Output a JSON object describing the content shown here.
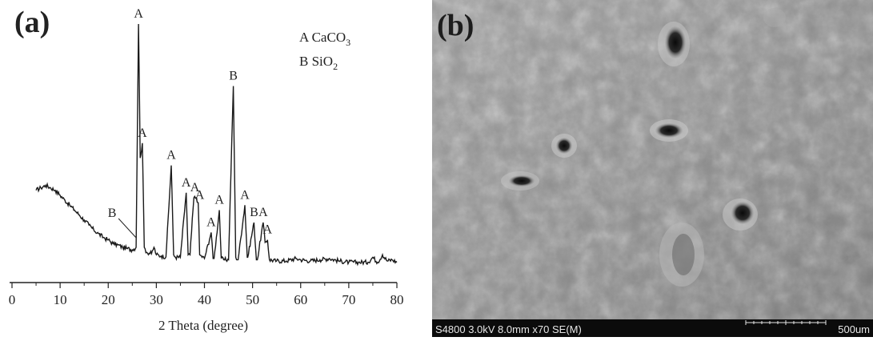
{
  "panel_a": {
    "label": "(a)",
    "legend": [
      {
        "letter": "A",
        "name": "CaCO",
        "sub": "3"
      },
      {
        "letter": "B",
        "name": "SiO",
        "sub": "2"
      }
    ]
  },
  "panel_b": {
    "label": "(b)",
    "info_text": "S4800 3.0kV 8.0mm x70 SE(M)",
    "scale_text": "500um"
  },
  "chart_data": {
    "type": "line",
    "title": "",
    "xlabel": "2 Theta (degree)",
    "ylabel": "",
    "xlim": [
      0,
      80
    ],
    "xticks": [
      0,
      10,
      20,
      30,
      40,
      50,
      60,
      70,
      80
    ],
    "grid": false,
    "series": [
      {
        "points": [
          [
            5,
            0.33
          ],
          [
            6,
            0.34
          ],
          [
            7,
            0.35
          ],
          [
            8,
            0.34
          ],
          [
            9,
            0.33
          ],
          [
            10,
            0.31
          ],
          [
            11,
            0.29
          ],
          [
            12,
            0.27
          ],
          [
            13,
            0.25
          ],
          [
            14,
            0.23
          ],
          [
            15,
            0.21
          ],
          [
            16,
            0.19
          ],
          [
            17,
            0.17
          ],
          [
            18,
            0.155
          ],
          [
            19,
            0.14
          ],
          [
            20,
            0.13
          ],
          [
            21,
            0.115
          ],
          [
            22,
            0.11
          ],
          [
            23,
            0.1
          ],
          [
            24,
            0.095
          ],
          [
            25,
            0.09
          ],
          [
            25.8,
            0.1
          ],
          [
            26.3,
            1.0
          ],
          [
            26.65,
            0.46
          ],
          [
            27.1,
            0.52
          ],
          [
            27.5,
            0.1
          ],
          [
            28,
            0.08
          ],
          [
            29,
            0.075
          ],
          [
            29.5,
            0.1
          ],
          [
            30,
            0.07
          ],
          [
            31,
            0.065
          ],
          [
            32,
            0.062
          ],
          [
            33.1,
            0.43
          ],
          [
            33.6,
            0.07
          ],
          [
            34,
            0.06
          ],
          [
            35,
            0.06
          ],
          [
            36.2,
            0.32
          ],
          [
            36.6,
            0.07
          ],
          [
            37,
            0.07
          ],
          [
            37.8,
            0.3
          ],
          [
            38.3,
            0.3
          ],
          [
            38.7,
            0.28
          ],
          [
            39,
            0.07
          ],
          [
            40,
            0.055
          ],
          [
            41.4,
            0.16
          ],
          [
            41.8,
            0.055
          ],
          [
            42,
            0.055
          ],
          [
            43.1,
            0.25
          ],
          [
            43.5,
            0.055
          ],
          [
            44,
            0.05
          ],
          [
            45,
            0.05
          ],
          [
            46,
            0.75
          ],
          [
            46.5,
            0.06
          ],
          [
            47,
            0.05
          ],
          [
            48.4,
            0.27
          ],
          [
            48.9,
            0.06
          ],
          [
            49,
            0.06
          ],
          [
            50.3,
            0.2
          ],
          [
            50.8,
            0.05
          ],
          [
            51,
            0.05
          ],
          [
            52.2,
            0.2
          ],
          [
            52.6,
            0.12
          ],
          [
            53.1,
            0.13
          ],
          [
            53.5,
            0.05
          ],
          [
            55,
            0.045
          ],
          [
            57,
            0.045
          ],
          [
            59,
            0.055
          ],
          [
            60,
            0.05
          ],
          [
            62,
            0.045
          ],
          [
            64,
            0.05
          ],
          [
            66,
            0.055
          ],
          [
            68,
            0.045
          ],
          [
            70,
            0.04
          ],
          [
            72,
            0.04
          ],
          [
            74,
            0.04
          ],
          [
            75,
            0.06
          ],
          [
            76,
            0.04
          ],
          [
            77,
            0.07
          ],
          [
            78,
            0.045
          ],
          [
            79,
            0.05
          ],
          [
            80,
            0.04
          ]
        ]
      }
    ],
    "peak_labels": [
      {
        "x": 26.3,
        "y": 1.0,
        "text": "A"
      },
      {
        "x": 27.1,
        "y": 0.52,
        "text": "A"
      },
      {
        "x": 33.1,
        "y": 0.43,
        "text": "A"
      },
      {
        "x": 36.2,
        "y": 0.32,
        "text": "A"
      },
      {
        "x": 38.0,
        "y": 0.3,
        "text": "A"
      },
      {
        "x": 39.0,
        "y": 0.27,
        "text": "A"
      },
      {
        "x": 41.4,
        "y": 0.16,
        "text": "A"
      },
      {
        "x": 43.1,
        "y": 0.25,
        "text": "A"
      },
      {
        "x": 46.0,
        "y": 0.75,
        "text": "B"
      },
      {
        "x": 48.4,
        "y": 0.27,
        "text": "A"
      },
      {
        "x": 50.3,
        "y": 0.2,
        "text": "B"
      },
      {
        "x": 52.2,
        "y": 0.2,
        "text": "A"
      },
      {
        "x": 53.1,
        "y": 0.13,
        "text": "A"
      }
    ],
    "annotations": [
      {
        "text": "B",
        "points_to_x": 25.8,
        "points_to_y": 0.1
      }
    ]
  }
}
